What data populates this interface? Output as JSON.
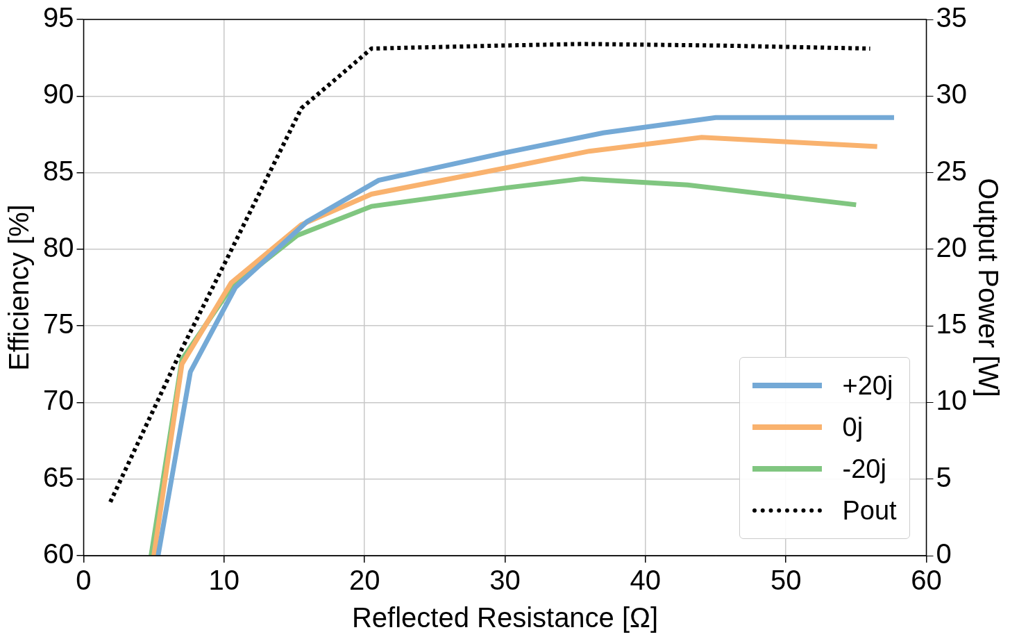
{
  "chart_data": {
    "type": "line",
    "x_label": "Reflected Resistance [Ω]",
    "y_label": "Efficiency [%]",
    "y2_label": "Output Power [W]",
    "xlim": [
      0,
      60
    ],
    "xticks": [
      0,
      10,
      20,
      30,
      40,
      50,
      60
    ],
    "ylim": [
      60,
      95
    ],
    "yticks": [
      60,
      65,
      70,
      75,
      80,
      85,
      90,
      95
    ],
    "y2lim": [
      0,
      35
    ],
    "y2ticks": [
      0,
      5,
      10,
      15,
      20,
      25,
      30,
      35
    ],
    "grid": true,
    "legend": "lower right",
    "series": [
      {
        "name": "+20j",
        "color": "#74a9d6",
        "line_style": "solid",
        "x": [
          5.3,
          7.6,
          10.8,
          15.9,
          21,
          30,
          37,
          45,
          57.7
        ],
        "values": [
          60,
          72,
          77.5,
          81.8,
          84.5,
          86.3,
          87.6,
          88.6,
          88.6
        ]
      },
      {
        "name": "0j",
        "color": "#f9b26e",
        "line_style": "solid",
        "x": [
          5,
          7,
          10.5,
          15.5,
          20.5,
          30,
          36,
          44,
          56.5
        ],
        "values": [
          60,
          72.5,
          77.8,
          81.6,
          83.6,
          85.3,
          86.4,
          87.3,
          86.7
        ]
      },
      {
        "name": "-20j",
        "color": "#80c680",
        "line_style": "solid",
        "x": [
          4.8,
          7,
          10.5,
          15.2,
          20.5,
          30,
          35.5,
          43,
          55
        ],
        "values": [
          60,
          72.8,
          77.5,
          80.9,
          82.8,
          84,
          84.6,
          84.2,
          82.9
        ]
      },
      {
        "name": "Pout",
        "color": "#000000",
        "line_style": "dotted",
        "axis": "y2",
        "x": [
          1.9,
          7,
          10,
          15.5,
          20.5,
          30,
          35.5,
          45,
          56
        ],
        "values": [
          3.5,
          13.5,
          19,
          29.2,
          33.1,
          33.3,
          33.4,
          33.3,
          33.1
        ]
      }
    ]
  }
}
